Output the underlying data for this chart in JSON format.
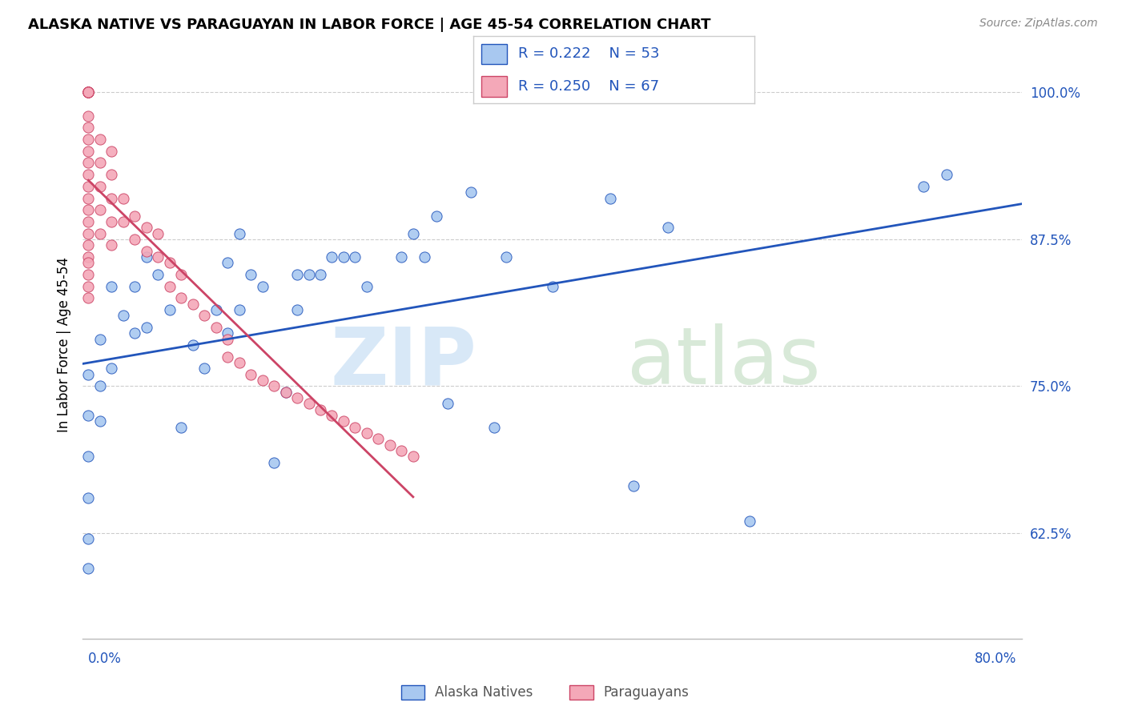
{
  "title": "ALASKA NATIVE VS PARAGUAYAN IN LABOR FORCE | AGE 45-54 CORRELATION CHART",
  "source": "Source: ZipAtlas.com",
  "ylabel": "In Labor Force | Age 45-54",
  "ymin": 0.535,
  "ymax": 1.035,
  "xmin": -0.005,
  "xmax": 0.805,
  "legend_r1": "R = 0.222",
  "legend_n1": "N = 53",
  "legend_r2": "R = 0.250",
  "legend_n2": "N = 67",
  "color_blue": "#a8c8f0",
  "color_pink": "#f4a8b8",
  "color_blue_dark": "#2255bb",
  "color_pink_dark": "#cc4466",
  "color_legend_text": "#2255bb",
  "ytick_vals": [
    0.625,
    0.75,
    0.875,
    1.0
  ],
  "ytick_labels": [
    "62.5%",
    "75.0%",
    "87.5%",
    "100.0%"
  ],
  "alaska_x": [
    0.0,
    0.0,
    0.0,
    0.0,
    0.0,
    0.0,
    0.01,
    0.01,
    0.01,
    0.02,
    0.02,
    0.03,
    0.04,
    0.04,
    0.05,
    0.05,
    0.06,
    0.07,
    0.08,
    0.09,
    0.1,
    0.11,
    0.12,
    0.12,
    0.13,
    0.13,
    0.14,
    0.15,
    0.16,
    0.17,
    0.18,
    0.18,
    0.19,
    0.2,
    0.21,
    0.22,
    0.23,
    0.24,
    0.27,
    0.28,
    0.29,
    0.3,
    0.31,
    0.33,
    0.35,
    0.36,
    0.4,
    0.45,
    0.47,
    0.5,
    0.57,
    0.72,
    0.74
  ],
  "alaska_y": [
    0.595,
    0.62,
    0.655,
    0.69,
    0.725,
    0.76,
    0.72,
    0.75,
    0.79,
    0.765,
    0.835,
    0.81,
    0.795,
    0.835,
    0.8,
    0.86,
    0.845,
    0.815,
    0.715,
    0.785,
    0.765,
    0.815,
    0.795,
    0.855,
    0.815,
    0.88,
    0.845,
    0.835,
    0.685,
    0.745,
    0.815,
    0.845,
    0.845,
    0.845,
    0.86,
    0.86,
    0.86,
    0.835,
    0.86,
    0.88,
    0.86,
    0.895,
    0.735,
    0.915,
    0.715,
    0.86,
    0.835,
    0.91,
    0.665,
    0.885,
    0.635,
    0.92,
    0.93
  ],
  "paraguayan_x": [
    0.0,
    0.0,
    0.0,
    0.0,
    0.0,
    0.0,
    0.0,
    0.0,
    0.0,
    0.0,
    0.0,
    0.0,
    0.0,
    0.0,
    0.0,
    0.0,
    0.0,
    0.0,
    0.0,
    0.0,
    0.0,
    0.0,
    0.0,
    0.0,
    0.01,
    0.01,
    0.01,
    0.01,
    0.01,
    0.02,
    0.02,
    0.02,
    0.02,
    0.02,
    0.03,
    0.03,
    0.04,
    0.04,
    0.05,
    0.05,
    0.06,
    0.06,
    0.07,
    0.07,
    0.08,
    0.08,
    0.09,
    0.1,
    0.11,
    0.12,
    0.12,
    0.13,
    0.14,
    0.15,
    0.16,
    0.17,
    0.18,
    0.19,
    0.2,
    0.21,
    0.22,
    0.23,
    0.24,
    0.25,
    0.26,
    0.27,
    0.28
  ],
  "paraguayan_y": [
    1.0,
    1.0,
    1.0,
    1.0,
    1.0,
    1.0,
    1.0,
    0.98,
    0.97,
    0.96,
    0.95,
    0.94,
    0.93,
    0.92,
    0.91,
    0.9,
    0.89,
    0.88,
    0.87,
    0.86,
    0.855,
    0.845,
    0.835,
    0.825,
    0.96,
    0.94,
    0.92,
    0.9,
    0.88,
    0.95,
    0.93,
    0.91,
    0.89,
    0.87,
    0.91,
    0.89,
    0.895,
    0.875,
    0.885,
    0.865,
    0.88,
    0.86,
    0.855,
    0.835,
    0.845,
    0.825,
    0.82,
    0.81,
    0.8,
    0.79,
    0.775,
    0.77,
    0.76,
    0.755,
    0.75,
    0.745,
    0.74,
    0.735,
    0.73,
    0.725,
    0.72,
    0.715,
    0.71,
    0.705,
    0.7,
    0.695,
    0.69
  ]
}
